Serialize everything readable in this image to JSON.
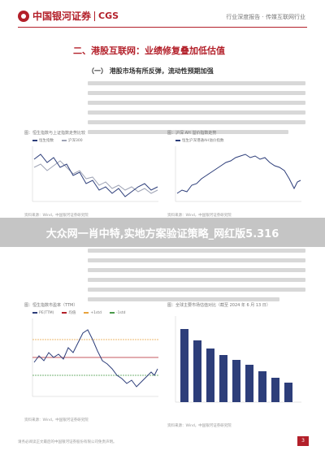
{
  "header": {
    "logo_text": "中国银河证券",
    "logo_cgs": "CGS",
    "right_text": "行业深度报告 · 传媒互联网行业"
  },
  "section_title": "二、港股互联网：业绩修复叠加低估值",
  "sub_title": "（一） 港股市场有所反弹，流动性预期加强",
  "banner": "大众网一肖中特,实地方案验证策略_网红版5.316",
  "charts": [
    {
      "title": "图：恒生指数与上证指数走势比较",
      "legend": [
        "恒生指数",
        "沪深300"
      ],
      "colors": [
        "#2d3e7a",
        "#9ea3b5"
      ],
      "source": "资料来源：Wind，中国银河证券研究院"
    },
    {
      "title": "图：沪深 AH 溢价指数走势",
      "legend": [
        "恒生沪深港通AH溢价指数"
      ],
      "colors": [
        "#2d3e7a"
      ],
      "source": "资料来源：Wind，中国银河证券研究院"
    },
    {
      "title": "图：恒生指数市盈率（TTM）",
      "legend": [
        "PE(TTM)",
        "均值",
        "+1std",
        "-1std"
      ],
      "colors": [
        "#2d3e7a",
        "#b3202a",
        "#e8a33d",
        "#4a9a4a"
      ],
      "source": "资料来源：Wind，中国银河证券研究院"
    },
    {
      "title": "图：全球主要市场估值对比（截至 2024 年 6 月 13 日）",
      "legend": [],
      "colors": [
        "#2d3e7a"
      ],
      "source": "资料来源：Wind，中国银河证券研究院"
    }
  ],
  "footer_note": "请务必阅读正文最后的中国银河证券股份有限公司免责声明。",
  "page_number": "3"
}
